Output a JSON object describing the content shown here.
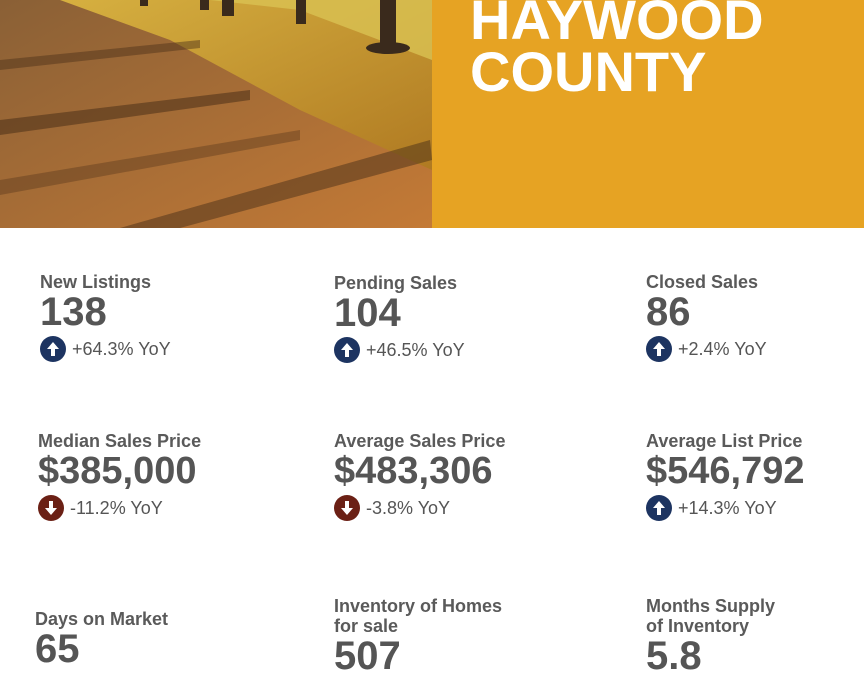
{
  "header": {
    "title_lines": [
      "HAYWOOD",
      "COUNTY"
    ],
    "banner_color": "#e6a323"
  },
  "stats": [
    {
      "label": "New Listings",
      "value": "138",
      "yoy": "+64.3% YoY",
      "direction": "up"
    },
    {
      "label": "Pending Sales",
      "value": "104",
      "yoy": "+46.5% YoY",
      "direction": "up"
    },
    {
      "label": "Closed Sales",
      "value": "86",
      "yoy": "+2.4% YoY",
      "direction": "up"
    },
    {
      "label": "Median Sales Price",
      "value": "$385,000",
      "yoy": "-11.2% YoY",
      "direction": "down"
    },
    {
      "label": "Average Sales Price",
      "value": "$483,306",
      "yoy": "-3.8% YoY",
      "direction": "down"
    },
    {
      "label": "Average List Price",
      "value": "$546,792",
      "yoy": "+14.3% YoY",
      "direction": "up"
    },
    {
      "label": "Days on Market",
      "value": "65"
    },
    {
      "label_lines": [
        "Inventory of Homes",
        "for sale"
      ],
      "value": "507"
    },
    {
      "label_lines": [
        "Months Supply",
        "of Inventory"
      ],
      "value": "5.8"
    }
  ],
  "colors": {
    "up_arrow": "#1d3461",
    "down_arrow": "#6b2015",
    "text": "#555555"
  },
  "icons": {
    "up": "arrow-up-circle-icon",
    "down": "arrow-down-circle-icon"
  }
}
